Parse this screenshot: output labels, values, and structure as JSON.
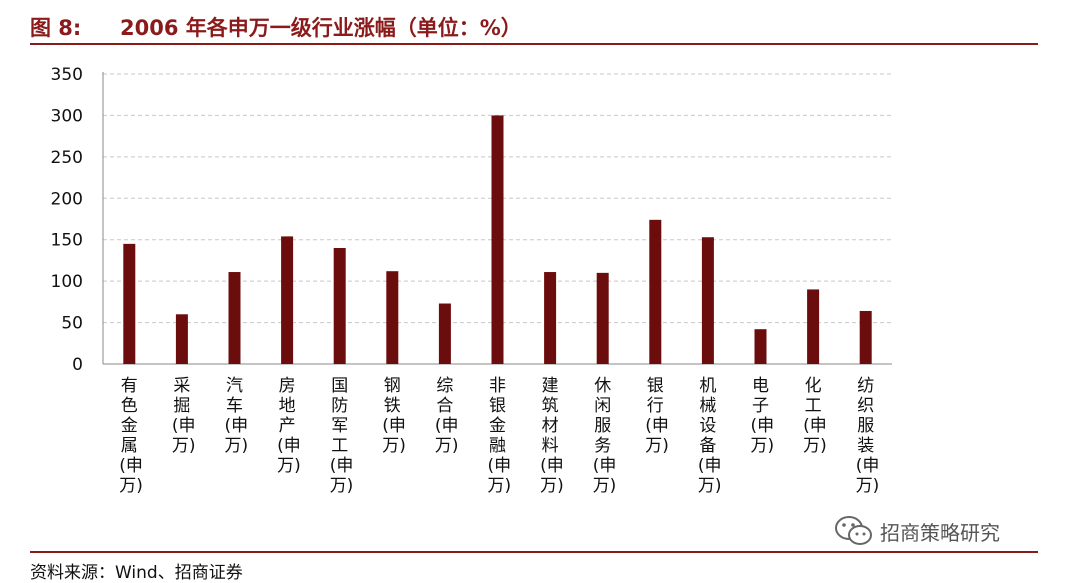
{
  "header": {
    "figure_label": "图 8:",
    "title": "2006 年各申万一级行业涨幅（单位：%）"
  },
  "chart_data": {
    "type": "bar",
    "title": "2006 年各申万一级行业涨幅（单位：%）",
    "xlabel": "",
    "ylabel": "",
    "ylim": [
      0,
      350
    ],
    "yticks": [
      0,
      50,
      100,
      150,
      200,
      250,
      300,
      350
    ],
    "grid": true,
    "grid_style": "dashed",
    "categories": [
      "有色金属(申万)",
      "采掘(申万)",
      "汽车(申万)",
      "房地产(申万)",
      "国防军工(申万)",
      "钢铁(申万)",
      "综合(申万)",
      "非银金融(申万)",
      "建筑材料(申万)",
      "休闲服务(申万)",
      "银行(申万)",
      "机械设备(申万)",
      "电子(申万)",
      "化工(申万)",
      "纺织服装(申万)"
    ],
    "values": [
      145,
      60,
      111,
      154,
      140,
      112,
      73,
      300,
      111,
      110,
      174,
      153,
      42,
      90,
      64
    ],
    "bar_color": "#6b0d0d"
  },
  "footer": {
    "source": "资料来源：Wind、招商证券",
    "watermark": "招商策略研究",
    "watermark_icon": "wechat-icon"
  },
  "colors": {
    "accent": "#8b1a1a",
    "bar": "#6b0d0d"
  }
}
